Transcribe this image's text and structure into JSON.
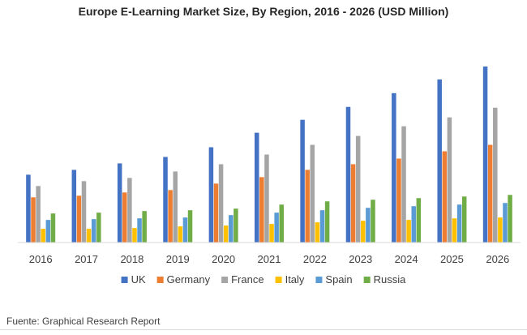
{
  "chart_data": {
    "type": "bar",
    "title": "Europe E-Learning Market Size, By Region, 2016 - 2026 (USD Million)",
    "categories": [
      "2016",
      "2017",
      "2018",
      "2019",
      "2020",
      "2021",
      "2022",
      "2023",
      "2024",
      "2025",
      "2026"
    ],
    "series": [
      {
        "name": "UK",
        "color": "#4472C4",
        "values": [
          84,
          90,
          98,
          106,
          118,
          136,
          152,
          168,
          185,
          202,
          218
        ]
      },
      {
        "name": "Germany",
        "color": "#ED7D31",
        "values": [
          56,
          58,
          62,
          65,
          73,
          81,
          90,
          97,
          104,
          113,
          121
        ]
      },
      {
        "name": "France",
        "color": "#A5A5A5",
        "values": [
          70,
          76,
          80,
          88,
          97,
          109,
          121,
          132,
          144,
          155,
          167
        ]
      },
      {
        "name": "Italy",
        "color": "#FFC000",
        "values": [
          17,
          17,
          18,
          20,
          21,
          23,
          25,
          27,
          28,
          30,
          31
        ]
      },
      {
        "name": "Spain",
        "color": "#5B9BD5",
        "values": [
          28,
          29,
          30,
          31,
          34,
          37,
          40,
          43,
          45,
          47,
          49
        ]
      },
      {
        "name": "Russia",
        "color": "#70AD47",
        "values": [
          36,
          37,
          39,
          40,
          42,
          47,
          51,
          53,
          55,
          57,
          59
        ]
      }
    ],
    "legend_position": "bottom",
    "grid": false,
    "ylim": [
      0,
      220
    ]
  },
  "footer": {
    "source": "Fuente: Graphical Research Report"
  }
}
